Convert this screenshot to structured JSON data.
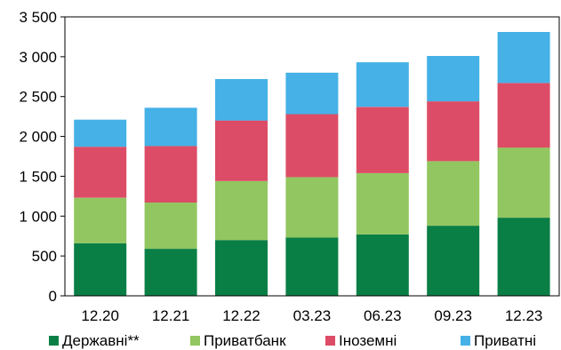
{
  "chart_data": {
    "type": "bar",
    "stacked": true,
    "title": "",
    "xlabel": "",
    "ylabel": "",
    "ylim": [
      0,
      3500
    ],
    "yticks": [
      0,
      500,
      1000,
      1500,
      2000,
      2500,
      3000,
      3500
    ],
    "ytick_labels": [
      "0",
      "500",
      "1 000",
      "1 500",
      "2 000",
      "2 500",
      "3 000",
      "3 500"
    ],
    "categories": [
      "12.20",
      "12.21",
      "12.22",
      "03.23",
      "06.23",
      "09.23",
      "12.23"
    ],
    "grid": false,
    "legend_position": "bottom",
    "series": [
      {
        "name": "Державні**",
        "color": "#0a7f45",
        "values": [
          660,
          590,
          700,
          730,
          770,
          880,
          980
        ]
      },
      {
        "name": "Приватбанк",
        "color": "#92c660",
        "values": [
          570,
          580,
          740,
          760,
          770,
          810,
          880
        ]
      },
      {
        "name": "Іноземні",
        "color": "#dd4c66",
        "values": [
          640,
          710,
          760,
          790,
          830,
          750,
          810
        ]
      },
      {
        "name": "Приватні",
        "color": "#45b1e6",
        "values": [
          340,
          480,
          520,
          520,
          560,
          570,
          640
        ]
      }
    ]
  }
}
